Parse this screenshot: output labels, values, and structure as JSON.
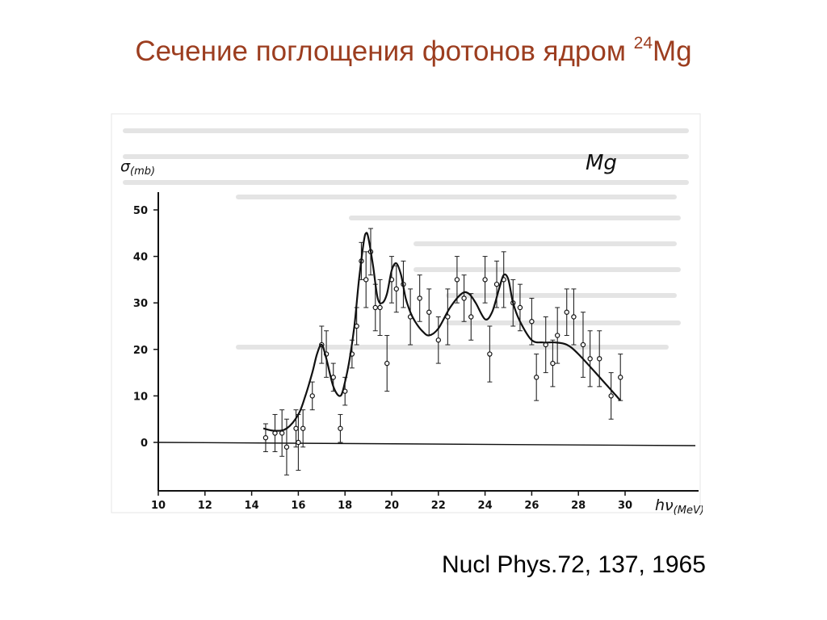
{
  "title": {
    "text": "Сечение поглощения фотонов ядром ",
    "isotope_mass": "24",
    "isotope_symbol": "Mg"
  },
  "citation": "Nucl Phys.72, 137, 1965",
  "chart_data": {
    "type": "line",
    "plot_label": "Mg",
    "ylabel": "σ",
    "ylabel_unit": "(mb)",
    "xlabel": "hν",
    "xlabel_unit": "(MeV)",
    "xlim": [
      10,
      30
    ],
    "ylim": [
      0,
      50
    ],
    "x_ticks": [
      10,
      12,
      14,
      16,
      18,
      20,
      22,
      24,
      26,
      28,
      30
    ],
    "y_ticks": [
      0,
      10,
      20,
      30,
      40,
      50
    ],
    "colors": {
      "ink": "#111111",
      "title": "#9c3d1f",
      "scan_text": "#c8c8c8"
    },
    "series": [
      {
        "kind": "fit-curve",
        "x": [
          14.5,
          15.0,
          15.5,
          16.0,
          16.3,
          16.6,
          16.8,
          17.0,
          17.2,
          17.5,
          17.8,
          18.0,
          18.2,
          18.4,
          18.6,
          18.8,
          18.9,
          19.0,
          19.2,
          19.4,
          19.6,
          19.8,
          20.0,
          20.2,
          20.4,
          20.6,
          20.8,
          21.0,
          21.3,
          21.6,
          22.0,
          22.5,
          23.0,
          23.3,
          23.6,
          24.0,
          24.3,
          24.6,
          24.8,
          25.0,
          25.2,
          25.5,
          26.0,
          26.5,
          27.0,
          27.5,
          28.0,
          29.0,
          29.8
        ],
        "y": [
          3,
          2.5,
          3,
          6,
          10,
          15,
          19,
          21,
          18,
          12,
          10,
          13,
          18,
          25,
          35,
          43,
          45,
          44,
          38,
          31,
          30,
          32,
          37,
          38.5,
          36,
          31,
          28,
          26,
          24,
          23,
          24.5,
          29,
          32,
          32,
          30,
          26.5,
          28,
          33,
          36,
          35,
          30,
          26,
          22,
          21.5,
          21.5,
          21,
          19,
          13.5,
          9
        ]
      },
      {
        "kind": "data-points",
        "x": [
          14.6,
          15.0,
          15.3,
          15.5,
          15.9,
          16.0,
          16.2,
          16.6,
          17.0,
          17.2,
          17.5,
          17.8,
          18.0,
          18.3,
          18.5,
          18.7,
          18.9,
          19.1,
          19.3,
          19.5,
          19.8,
          20.0,
          20.2,
          20.5,
          20.8,
          21.2,
          21.6,
          22.0,
          22.4,
          22.8,
          23.1,
          23.4,
          24.0,
          24.2,
          24.5,
          24.8,
          25.2,
          25.5,
          26.0,
          26.2,
          26.6,
          26.9,
          27.1,
          27.5,
          27.8,
          28.2,
          28.5,
          28.9,
          29.4,
          29.8
        ],
        "y": [
          1,
          2,
          2,
          -1,
          3,
          0,
          3,
          10,
          21,
          19,
          14,
          3,
          11,
          19,
          25,
          39,
          35,
          41,
          29,
          29,
          17,
          35,
          33,
          34,
          27,
          31,
          28,
          22,
          27,
          35,
          31,
          27,
          35,
          19,
          34,
          35,
          30,
          29,
          26,
          14,
          21,
          17,
          23,
          28,
          27,
          21,
          18,
          18,
          10,
          14
        ],
        "err": [
          3,
          4,
          5,
          6,
          4,
          6,
          4,
          3,
          4,
          5,
          3,
          3,
          3,
          3,
          4,
          4,
          6,
          5,
          5,
          6,
          6,
          5,
          5,
          5,
          6,
          5,
          5,
          5,
          6,
          5,
          5,
          5,
          5,
          6,
          5,
          6,
          5,
          5,
          5,
          5,
          6,
          5,
          6,
          5,
          6,
          7,
          6,
          6,
          5,
          5
        ]
      }
    ]
  }
}
